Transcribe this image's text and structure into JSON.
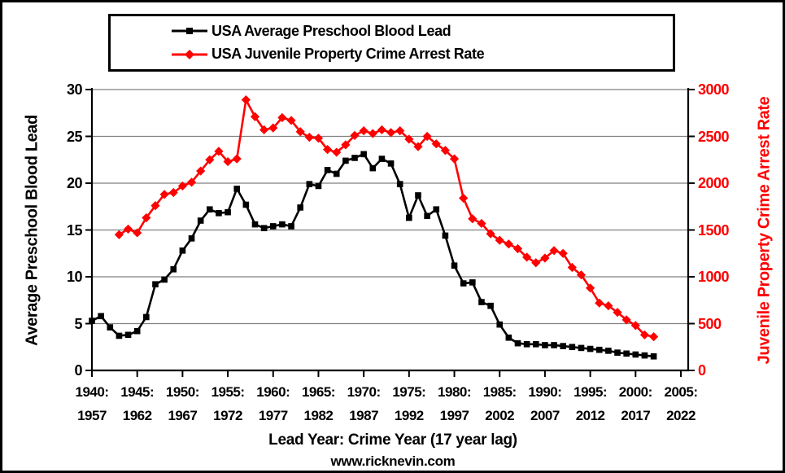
{
  "window": {
    "background": "#FFFFFF",
    "border_color": "#000000"
  },
  "colors": {
    "blood_lead_series": "#000000",
    "crime_series": "#FF0000",
    "gridline": "#808080",
    "axis": "#000000"
  },
  "legend": {
    "items": [
      {
        "label": "USA Average Preschool Blood Lead",
        "marker": "square",
        "color": "#000000"
      },
      {
        "label": "USA Juvenile Property Crime Arrest Rate",
        "marker": "diamond",
        "color": "#FF0000"
      }
    ]
  },
  "left_axis": {
    "title": "Average Preschool Blood Lead",
    "tick_labels": [
      "0",
      "5",
      "10",
      "15",
      "20",
      "25",
      "30"
    ],
    "tick_values": [
      0,
      5,
      10,
      15,
      20,
      25,
      30
    ],
    "color": "#000000"
  },
  "right_axis": {
    "title": "Juvenile Property Crime Arrest Rate",
    "tick_labels": [
      "0",
      "500",
      "1000",
      "1500",
      "2000",
      "2500",
      "3000"
    ],
    "tick_values": [
      0,
      500,
      1000,
      1500,
      2000,
      2500,
      3000
    ],
    "color": "#FF0000"
  },
  "x_axis": {
    "title": "Lead Year: Crime Year (17 year lag)",
    "tick_labels": [
      {
        "lead": "1940:",
        "crime": "1957"
      },
      {
        "lead": "1945:",
        "crime": "1962"
      },
      {
        "lead": "1950:",
        "crime": "1967"
      },
      {
        "lead": "1955:",
        "crime": "1972"
      },
      {
        "lead": "1960:",
        "crime": "1977"
      },
      {
        "lead": "1965:",
        "crime": "1982"
      },
      {
        "lead": "1970:",
        "crime": "1987"
      },
      {
        "lead": "1975:",
        "crime": "1992"
      },
      {
        "lead": "1980:",
        "crime": "1997"
      },
      {
        "lead": "1985:",
        "crime": "2002"
      },
      {
        "lead": "1990:",
        "crime": "2007"
      },
      {
        "lead": "1995:",
        "crime": "2012"
      },
      {
        "lead": "2000:",
        "crime": "2017"
      },
      {
        "lead": "2005:",
        "crime": "2022"
      }
    ]
  },
  "footer": {
    "text": "www.ricknevin.com"
  },
  "chart_data": {
    "type": "line",
    "title": "",
    "xlabel": "Lead Year: Crime Year (17 year lag)",
    "x_mapping": "bottom axis shows lead year; crime year = lead year + 17",
    "x_tick_lead_years": [
      1940,
      1945,
      1950,
      1955,
      1960,
      1965,
      1970,
      1975,
      1980,
      1985,
      1990,
      1995,
      2000,
      2005
    ],
    "x_axis_lead_year_range": [
      1940,
      2005
    ],
    "left_ylabel": "Average Preschool Blood Lead",
    "right_ylabel": "Juvenile Property Crime Arrest Rate",
    "left_ylim": [
      0,
      30
    ],
    "right_ylim": [
      0,
      3000
    ],
    "grid": "horizontal gridlines every 5 units (left axis)",
    "legend_position": "top",
    "series": [
      {
        "name": "USA Average Preschool Blood Lead",
        "axis": "left",
        "color": "#000000",
        "marker": "square",
        "years_are": "lead_year",
        "start_year": 1940,
        "end_year": 2002,
        "values": [
          5.3,
          5.8,
          4.6,
          3.7,
          3.8,
          4.2,
          5.7,
          9.2,
          9.7,
          10.8,
          12.8,
          14.1,
          16.0,
          17.2,
          16.8,
          16.9,
          19.4,
          17.7,
          15.6,
          15.2,
          15.4,
          15.6,
          15.4,
          17.4,
          19.9,
          19.7,
          21.4,
          21.0,
          22.4,
          22.7,
          23.1,
          21.6,
          22.6,
          22.1,
          19.9,
          16.3,
          18.7,
          16.5,
          17.2,
          14.4,
          11.2,
          9.3,
          9.4,
          7.3,
          6.9,
          4.9,
          3.5,
          2.9,
          2.8,
          2.8,
          2.7,
          2.7,
          2.6,
          2.5,
          2.4,
          2.3,
          2.2,
          2.1,
          1.9,
          1.8,
          1.7,
          1.6,
          1.5
        ]
      },
      {
        "name": "USA Juvenile Property Crime Arrest Rate",
        "axis": "right",
        "color": "#FF0000",
        "marker": "diamond",
        "years_are": "crime_year",
        "lag_years": 17,
        "start_year": 1960,
        "end_year": 2019,
        "values": [
          1450,
          1510,
          1470,
          1630,
          1760,
          1880,
          1900,
          1970,
          2010,
          2130,
          2250,
          2340,
          2230,
          2260,
          2890,
          2710,
          2570,
          2590,
          2700,
          2670,
          2550,
          2490,
          2480,
          2360,
          2330,
          2410,
          2510,
          2560,
          2530,
          2570,
          2540,
          2560,
          2470,
          2390,
          2500,
          2420,
          2350,
          2260,
          1840,
          1620,
          1570,
          1460,
          1390,
          1350,
          1300,
          1210,
          1150,
          1200,
          1280,
          1250,
          1100,
          1020,
          880,
          720,
          690,
          620,
          540,
          480,
          380,
          360
        ]
      }
    ]
  }
}
